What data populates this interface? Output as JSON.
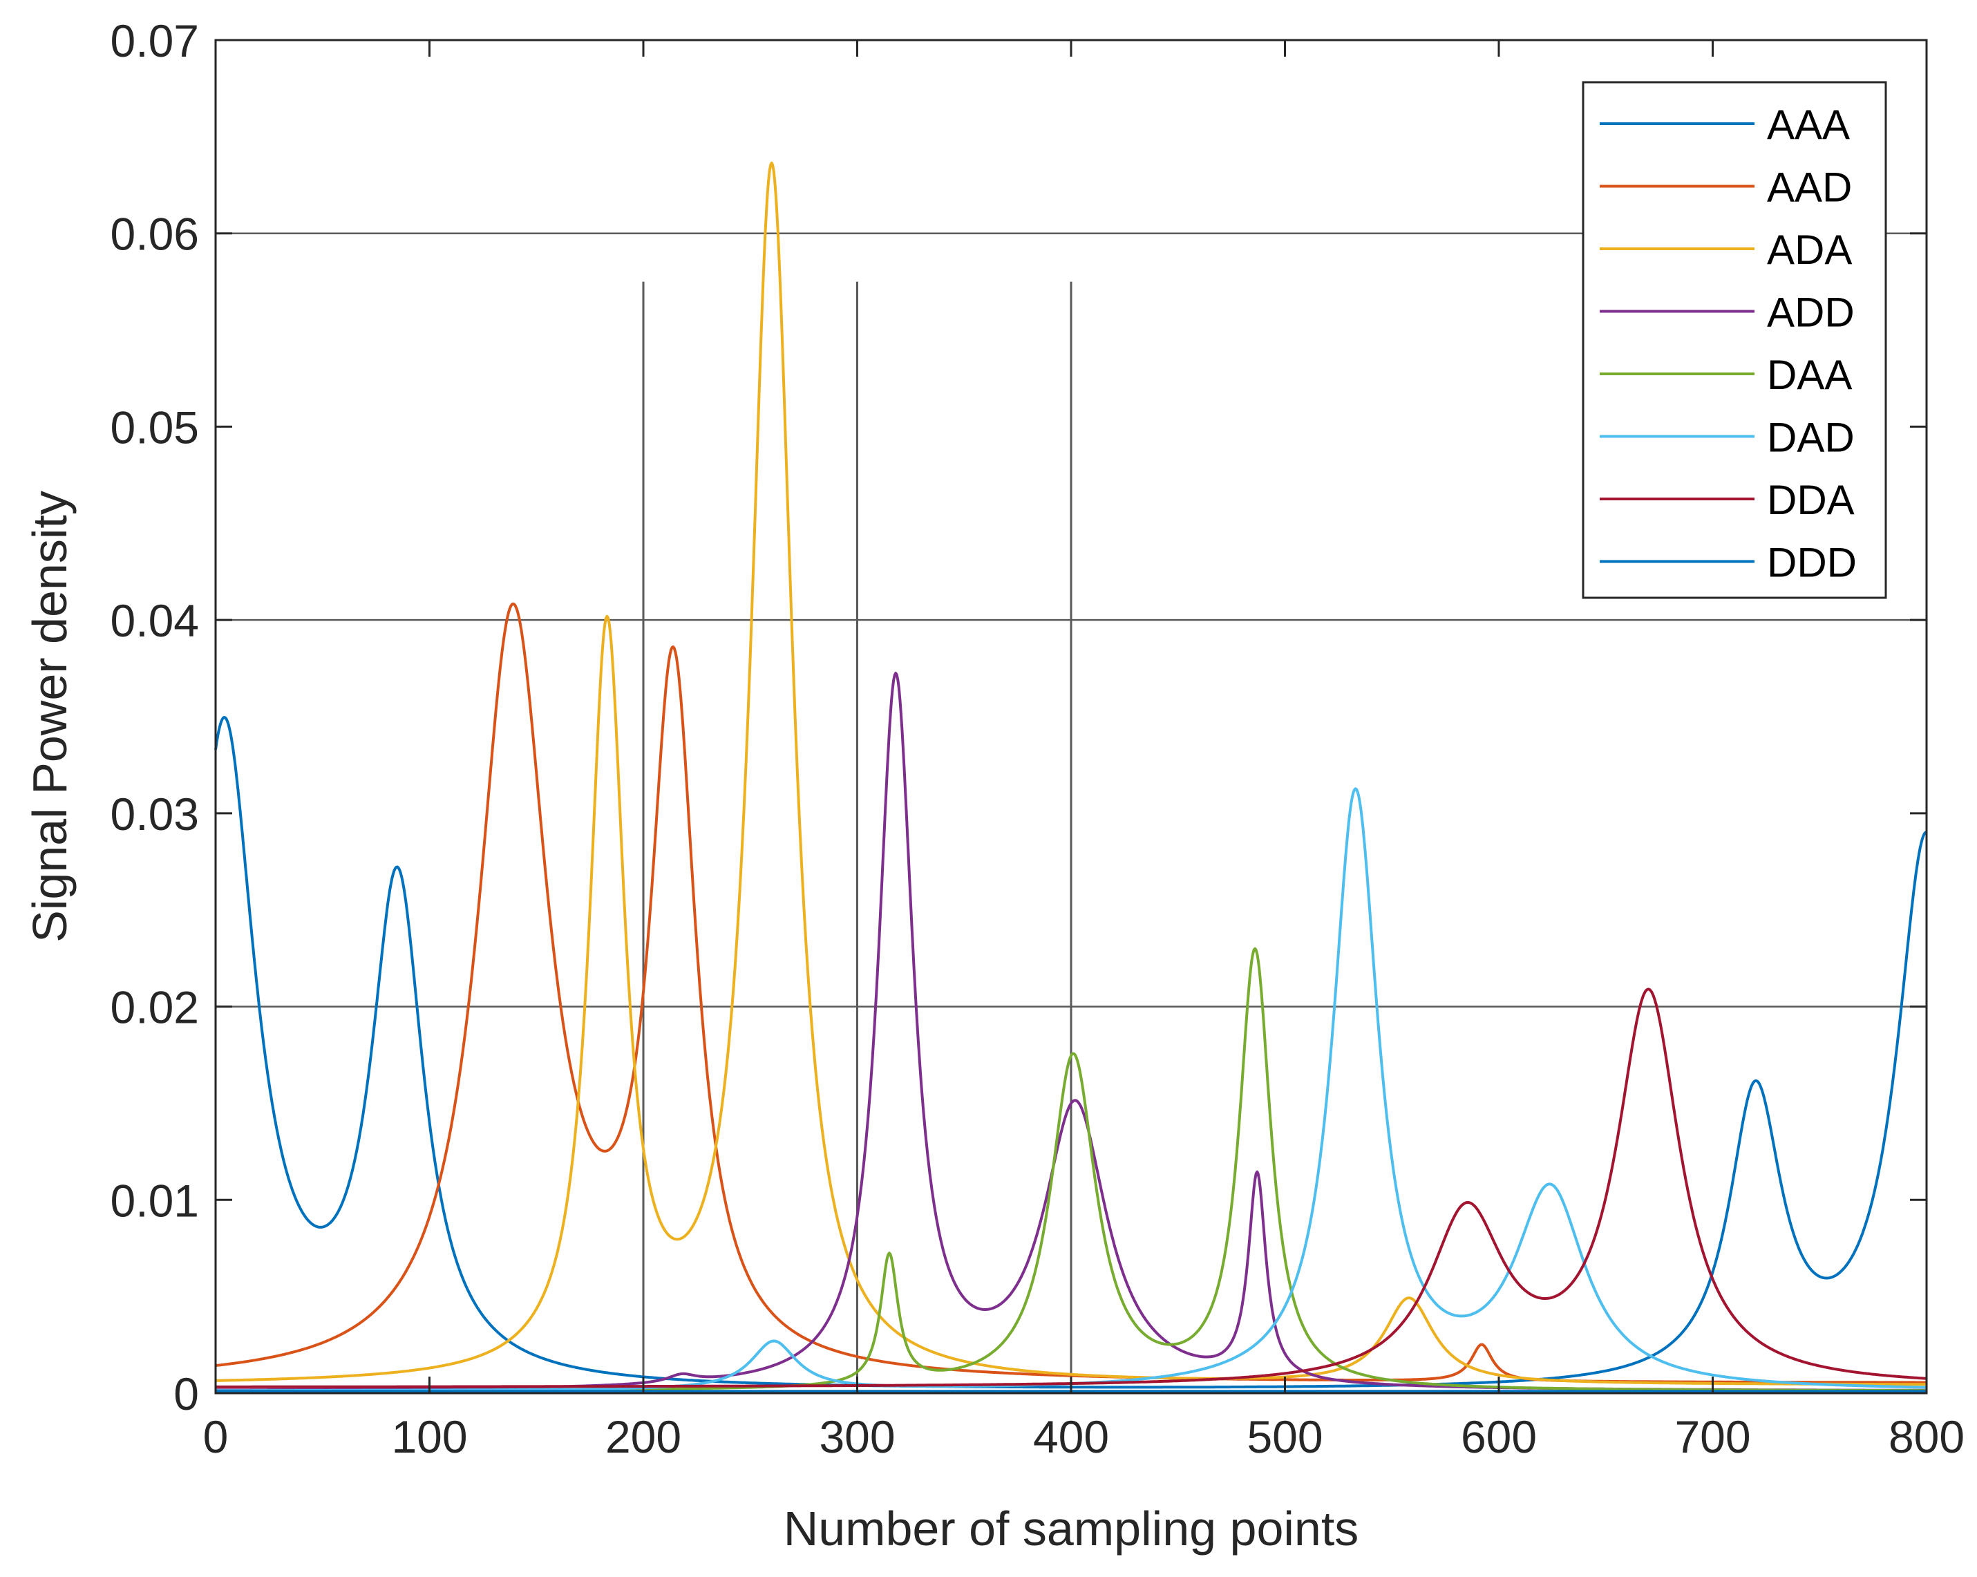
{
  "chart_data": {
    "type": "line",
    "title": "",
    "xlabel": "Number of sampling points",
    "ylabel": "Signal Power density",
    "xlim": [
      0,
      800
    ],
    "ylim": [
      0,
      0.07
    ],
    "xticks": [
      0,
      100,
      200,
      300,
      400,
      500,
      600,
      700,
      800
    ],
    "xtick_labels": [
      "0",
      "100",
      "200",
      "300",
      "400",
      "500",
      "600",
      "700",
      "800"
    ],
    "yticks": [
      0,
      0.01,
      0.02,
      0.03,
      0.04,
      0.05,
      0.06,
      0.07
    ],
    "ytick_labels": [
      "0",
      "0.01",
      "0.02",
      "0.03",
      "0.04",
      "0.05",
      "0.06",
      "0.07"
    ],
    "grid_y": [
      0.02,
      0.04,
      0.06
    ],
    "vertical_markers": [
      {
        "x": 200,
        "top": 0.0575
      },
      {
        "x": 300,
        "top": 0.0575
      },
      {
        "x": 400,
        "top": 0.0575
      }
    ],
    "legend_position": "top-right",
    "series": [
      {
        "name": "AAA",
        "color": "#0072BD",
        "baseline": 0.0001,
        "peaks": [
          [
            4,
            0.034,
            18
          ],
          [
            85,
            0.0255,
            15
          ],
          [
            720,
            0.0148,
            15
          ],
          [
            800,
            0.0284,
            17
          ]
        ]
      },
      {
        "name": "AAD",
        "color": "#D95319",
        "baseline": 0.0005,
        "peaks": [
          [
            139,
            0.0393,
            20
          ],
          [
            214,
            0.0355,
            13
          ],
          [
            592,
            0.0019,
            6
          ]
        ]
      },
      {
        "name": "ADA",
        "color": "#EDB120",
        "baseline": 0.0004,
        "peaks": [
          [
            183,
            0.0383,
            10
          ],
          [
            260,
            0.0626,
            12
          ],
          [
            558,
            0.0044,
            14
          ]
        ]
      },
      {
        "name": "ADD",
        "color": "#7E2F8E",
        "baseline": 0.0001,
        "peaks": [
          [
            218,
            0.0004,
            8
          ],
          [
            318,
            0.0365,
            10
          ],
          [
            402,
            0.0145,
            18
          ],
          [
            487,
            0.0106,
            5
          ]
        ]
      },
      {
        "name": "DAA",
        "color": "#77AC30",
        "baseline": 0.0001,
        "peaks": [
          [
            315,
            0.0067,
            5
          ],
          [
            401,
            0.0172,
            13
          ],
          [
            486,
            0.0225,
            9
          ]
        ]
      },
      {
        "name": "DAD",
        "color": "#4DBEEE",
        "baseline": 0.0001,
        "peaks": [
          [
            261,
            0.0025,
            13
          ],
          [
            533,
            0.0307,
            13
          ],
          [
            624,
            0.0101,
            20
          ]
        ]
      },
      {
        "name": "DDA",
        "color": "#A2142F",
        "baseline": 0.0003,
        "peaks": [
          [
            585,
            0.0087,
            21
          ],
          [
            670,
            0.0201,
            18
          ]
        ]
      },
      {
        "name": "DDD",
        "color": "#0072BD",
        "baseline": 0.0001,
        "peaks": []
      }
    ]
  }
}
